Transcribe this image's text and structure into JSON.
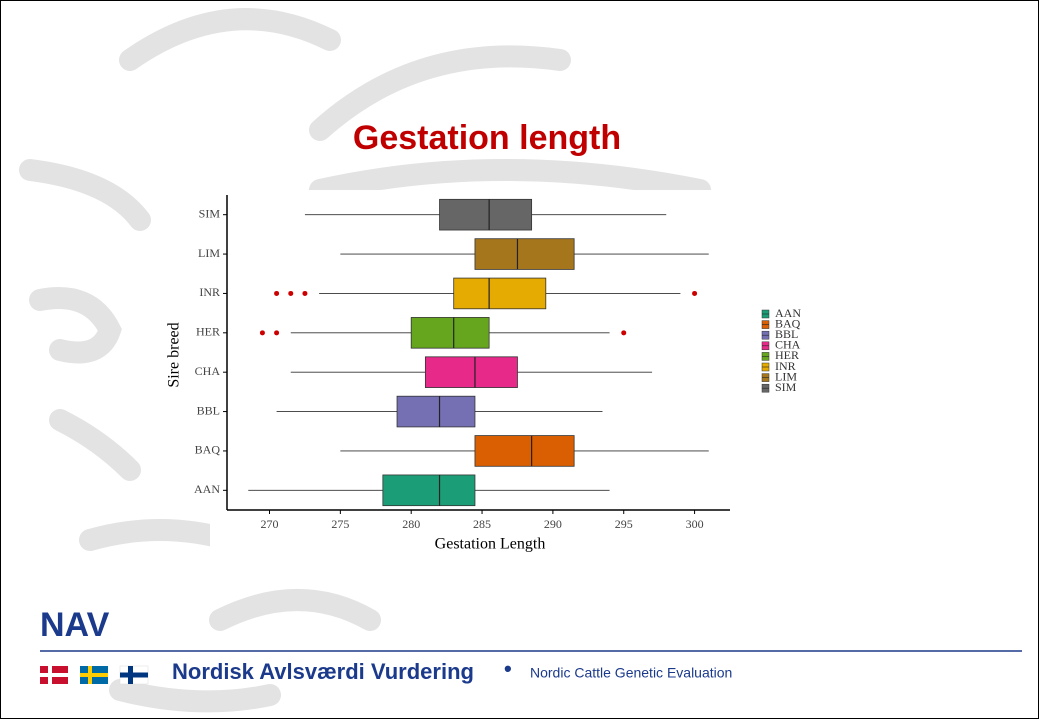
{
  "chart_data": {
    "type": "boxplot",
    "title": "Gestation length",
    "xlabel": "Gestation Length",
    "ylabel": "Sire breed",
    "categories": [
      "AAN",
      "BAQ",
      "BBL",
      "CHA",
      "HER",
      "INR",
      "LIM",
      "SIM"
    ],
    "boxes": [
      {
        "min": 268.5,
        "q1": 278,
        "median": 282,
        "q3": 284.5,
        "max": 294,
        "outliers": [],
        "color": "#1b9e77"
      },
      {
        "min": 275,
        "q1": 284.5,
        "median": 288.5,
        "q3": 291.5,
        "max": 301,
        "outliers": [],
        "color": "#d95f02"
      },
      {
        "min": 270.5,
        "q1": 279,
        "median": 282,
        "q3": 284.5,
        "max": 293.5,
        "outliers": [],
        "color": "#7570b3"
      },
      {
        "min": 271.5,
        "q1": 281,
        "median": 284.5,
        "q3": 287.5,
        "max": 297,
        "outliers": [],
        "color": "#e7298a"
      },
      {
        "min": 271.5,
        "q1": 280,
        "median": 283,
        "q3": 285.5,
        "max": 294,
        "outliers": [
          269.5,
          270.5,
          295
        ],
        "color": "#66a61e"
      },
      {
        "min": 273.5,
        "q1": 283,
        "median": 285.5,
        "q3": 289.5,
        "max": 299,
        "outliers": [
          270.5,
          271.5,
          272.5,
          300
        ],
        "color": "#e6ab02"
      },
      {
        "min": 275,
        "q1": 284.5,
        "median": 287.5,
        "q3": 291.5,
        "max": 301,
        "outliers": [],
        "color": "#a6761d"
      },
      {
        "min": 272.5,
        "q1": 282,
        "median": 285.5,
        "q3": 288.5,
        "max": 298,
        "outliers": [],
        "color": "#666666"
      }
    ],
    "outlier_color": "#cc0000",
    "xlim": [
      267,
      302.5
    ],
    "xticks": [
      270,
      275,
      280,
      285,
      290,
      295,
      300
    ],
    "grid": false,
    "legend": "right"
  },
  "footer": {
    "logo": "NAV",
    "brand": "Nordisk Avlsværdi Vurdering",
    "separator": "•",
    "tagline": "Nordic Cattle Genetic Evaluation"
  }
}
